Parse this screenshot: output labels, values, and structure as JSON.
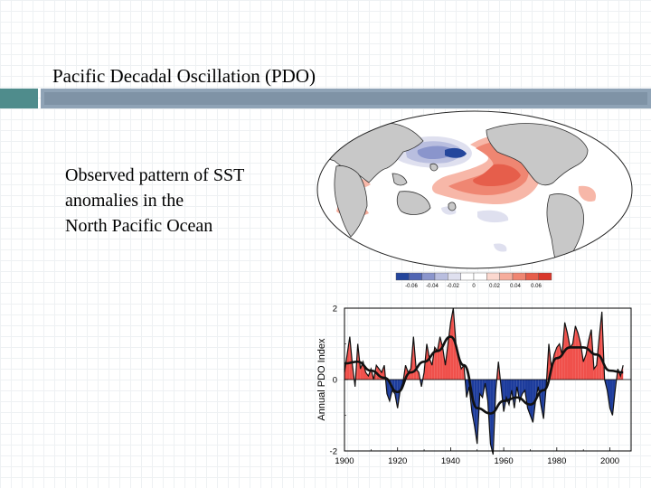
{
  "slide": {
    "title": "Pacific Decadal Oscillation (PDO)",
    "body_lines": [
      "Observed pattern of SST",
      "anomalies in the",
      "North Pacific Ocean"
    ]
  },
  "colors": {
    "accent_teal": "#4f8c8c",
    "accent_slate": "#8fa3b6",
    "positive": "#f0504b",
    "negative": "#1d3c9c",
    "land": "#c8c8c8"
  },
  "map": {
    "colorbar_labels": [
      "-0.06",
      "-0.04",
      "-0.02",
      "0",
      "0.02",
      "0.04",
      "0.06"
    ],
    "colorbar_colors": [
      "#24469c",
      "#5166b4",
      "#8a95cc",
      "#b9bedf",
      "#dfe0ef",
      "#ffffff",
      "#ffffff",
      "#fbd8cf",
      "#f6ad9c",
      "#ef8672",
      "#e65e4b",
      "#d9372b"
    ]
  },
  "chart_data": {
    "type": "area",
    "title": "",
    "xlabel": "",
    "ylabel": "Annual PDO Index",
    "xlim": [
      1900,
      2008
    ],
    "ylim": [
      -2,
      2
    ],
    "xticks": [
      1900,
      1920,
      1940,
      1960,
      1980,
      2000
    ],
    "yticks": [
      -2,
      0,
      2
    ],
    "fill_colors": {
      "positive": "#f0504b",
      "negative": "#1d3c9c"
    },
    "series": [
      {
        "x": [
          1900,
          1901,
          1902,
          1903,
          1904,
          1905,
          1906,
          1907,
          1908,
          1909,
          1910,
          1911,
          1912,
          1913,
          1914,
          1915,
          1916,
          1917,
          1918,
          1919,
          1920,
          1921,
          1922,
          1923,
          1924,
          1925,
          1926,
          1927,
          1928,
          1929,
          1930,
          1931,
          1932,
          1933,
          1934,
          1935,
          1936,
          1937,
          1938,
          1939,
          1940,
          1941,
          1942,
          1943,
          1944,
          1945,
          1946,
          1947,
          1948,
          1949,
          1950,
          1951,
          1952,
          1953,
          1954,
          1955,
          1956,
          1957,
          1958,
          1959,
          1960,
          1961,
          1962,
          1963,
          1964,
          1965,
          1966,
          1967,
          1968,
          1969,
          1970,
          1971,
          1972,
          1973,
          1974,
          1975,
          1976,
          1977,
          1978,
          1979,
          1980,
          1981,
          1982,
          1983,
          1984,
          1985,
          1986,
          1987,
          1988,
          1989,
          1990,
          1991,
          1992,
          1993,
          1994,
          1995,
          1996,
          1997,
          1998,
          1999,
          2000,
          2001,
          2002,
          2003,
          2004,
          2005
        ],
        "values": [
          0.2,
          0.7,
          1.2,
          0.4,
          -0.2,
          1.0,
          0.3,
          0.5,
          0.2,
          0.1,
          0.3,
          0.0,
          0.4,
          0.3,
          0.2,
          0.4,
          -0.4,
          -0.6,
          -0.3,
          -0.4,
          -0.8,
          -0.3,
          -0.1,
          0.4,
          0.2,
          0.3,
          1.2,
          0.3,
          0.2,
          -0.2,
          0.2,
          1.0,
          0.6,
          0.4,
          0.9,
          0.8,
          1.2,
          0.9,
          0.4,
          1.0,
          1.6,
          2.0,
          1.0,
          0.6,
          0.3,
          0.4,
          -0.5,
          -0.2,
          -0.9,
          -1.3,
          -1.8,
          -0.4,
          -0.5,
          -0.1,
          -0.6,
          -1.8,
          -2.1,
          -0.3,
          0.5,
          -0.2,
          -0.9,
          -0.5,
          -0.7,
          -0.3,
          -0.8,
          -0.2,
          -0.6,
          -0.4,
          -0.3,
          -0.8,
          -1.0,
          -1.2,
          -0.6,
          -0.2,
          -0.7,
          -1.1,
          -0.2,
          1.0,
          0.3,
          0.7,
          0.9,
          1.0,
          0.7,
          1.6,
          1.3,
          0.9,
          1.0,
          1.5,
          1.3,
          1.0,
          0.5,
          0.7,
          1.1,
          1.4,
          0.3,
          0.4,
          1.2,
          1.9,
          0.0,
          -0.3,
          -0.8,
          -1.0,
          -0.3,
          0.3,
          0.1,
          0.4
        ]
      },
      {
        "name": "",
        "x": [
          1900,
          1905,
          1910,
          1915,
          1920,
          1925,
          1930,
          1935,
          1940,
          1945,
          1950,
          1955,
          1960,
          1965,
          1970,
          1975,
          1980,
          1985,
          1990,
          1995,
          2000,
          2005
        ],
        "values": [
          0.45,
          0.5,
          0.25,
          0.05,
          -0.35,
          0.2,
          0.5,
          0.8,
          1.2,
          0.4,
          -0.8,
          -0.95,
          -0.6,
          -0.5,
          -0.7,
          -0.3,
          0.6,
          0.9,
          0.9,
          0.7,
          0.25,
          0.2
        ]
      }
    ]
  }
}
